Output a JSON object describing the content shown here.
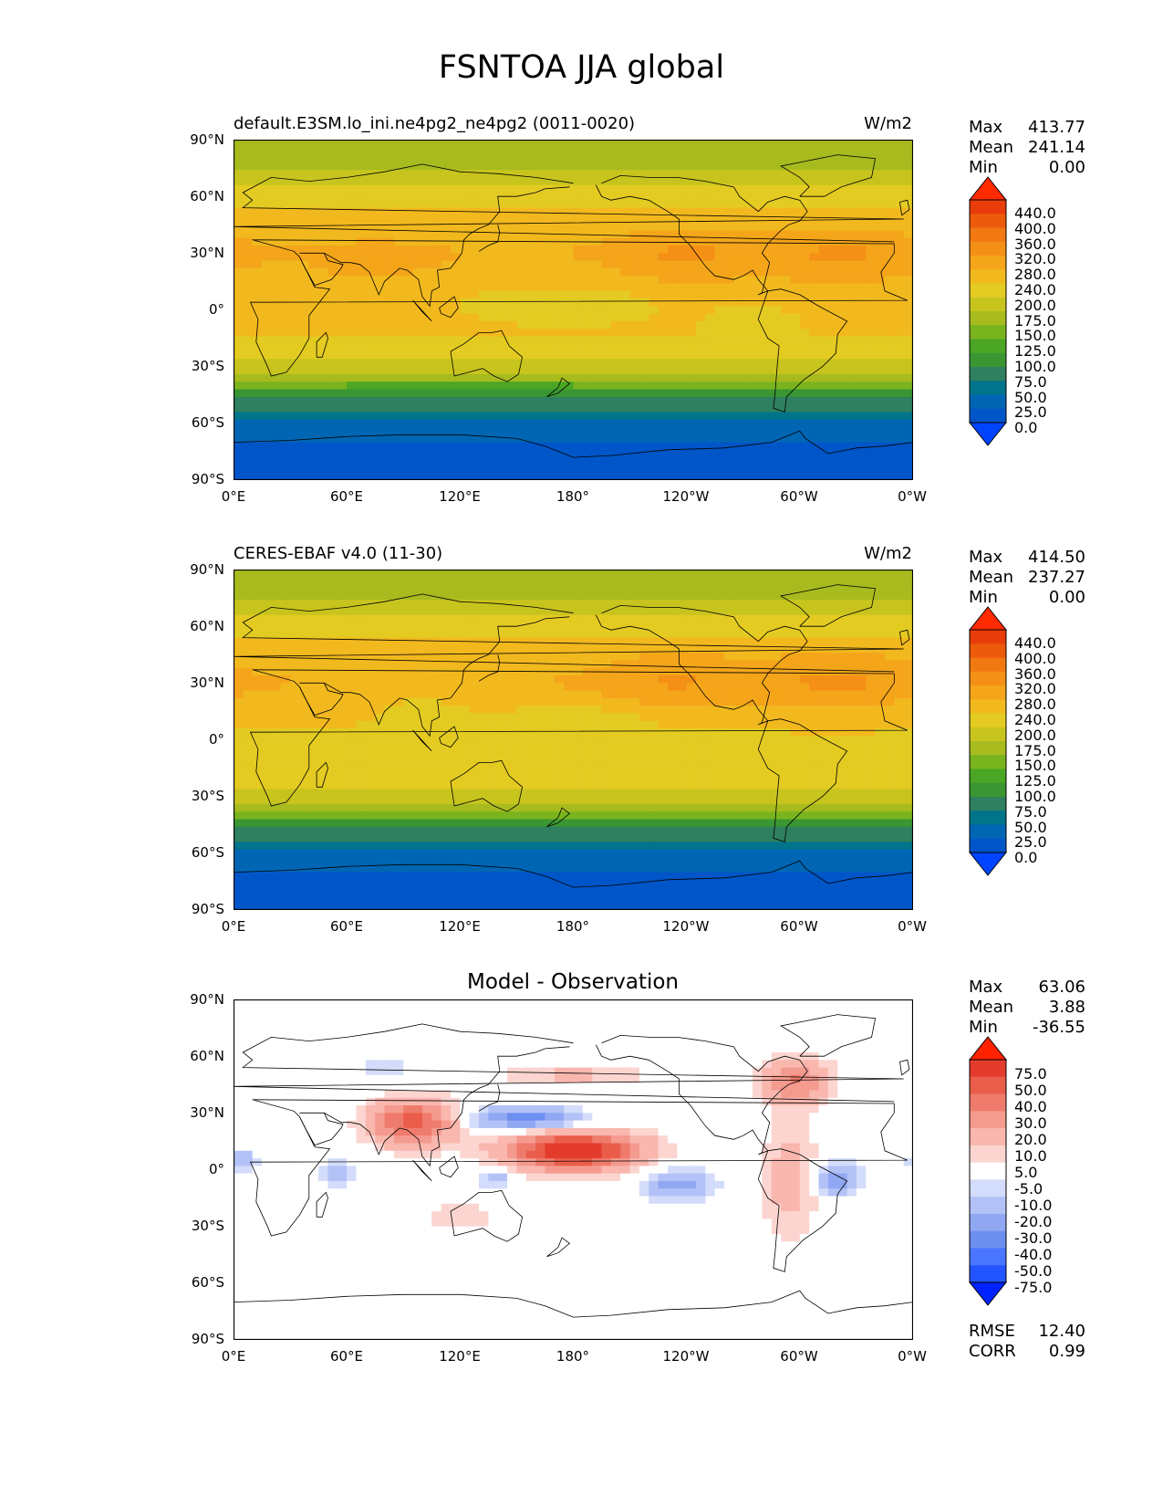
{
  "figure": {
    "title": "FSNTOA JJA global"
  },
  "colors": {
    "sequential": [
      "#0044ff",
      "#0056c8",
      "#0066b4",
      "#00748a",
      "#2e8060",
      "#3a9632",
      "#4aa624",
      "#79b41e",
      "#a8bb1e",
      "#c8c41e",
      "#e3cb22",
      "#f2b91e",
      "#f4a51a",
      "#f49016",
      "#f27812",
      "#ee5a0c",
      "#e83c0a",
      "#ff2a00"
    ],
    "diverging": [
      "#0022ff",
      "#2255ff",
      "#4a76ff",
      "#6d8ff0",
      "#90a8f2",
      "#b3c2f6",
      "#d3dcfa",
      "#ffffff",
      "#fcd5d0",
      "#f9b7ae",
      "#f59a8e",
      "#ef7b6c",
      "#ea5d4a",
      "#e43c2c",
      "#ff2200"
    ]
  },
  "panels": [
    {
      "title": "default.E3SM.lo_ini.ne4pg2_ne4pg2 (0011-0020)",
      "units": "W/m2",
      "stats": [
        {
          "label": "Max",
          "value": "413.77"
        },
        {
          "label": "Mean",
          "value": "241.14"
        },
        {
          "label": "Min",
          "value": "0.00"
        }
      ],
      "colorbar_ticks": [
        "440.0",
        "400.0",
        "360.0",
        "320.0",
        "280.0",
        "240.0",
        "200.0",
        "175.0",
        "150.0",
        "125.0",
        "100.0",
        "75.0",
        "50.0",
        "25.0",
        "0.0"
      ]
    },
    {
      "title": "CERES-EBAF v4.0 (11-30)",
      "units": "W/m2",
      "stats": [
        {
          "label": "Max",
          "value": "414.50"
        },
        {
          "label": "Mean",
          "value": "237.27"
        },
        {
          "label": "Min",
          "value": "0.00"
        }
      ],
      "colorbar_ticks": [
        "440.0",
        "400.0",
        "360.0",
        "320.0",
        "280.0",
        "240.0",
        "200.0",
        "175.0",
        "150.0",
        "125.0",
        "100.0",
        "75.0",
        "50.0",
        "25.0",
        "0.0"
      ]
    },
    {
      "title": "Model - Observation",
      "units": "",
      "stats": [
        {
          "label": "Max",
          "value": "63.06"
        },
        {
          "label": "Mean",
          "value": "3.88"
        },
        {
          "label": "Min",
          "value": "-36.55"
        }
      ],
      "colorbar_ticks": [
        "75.0",
        "50.0",
        "40.0",
        "30.0",
        "20.0",
        "10.0",
        "5.0",
        "-5.0",
        "-10.0",
        "-20.0",
        "-30.0",
        "-40.0",
        "-50.0",
        "-75.0"
      ],
      "extra": [
        {
          "label": "RMSE",
          "value": "12.40"
        },
        {
          "label": "CORR",
          "value": "0.99"
        }
      ]
    }
  ],
  "axes": {
    "y_ticks": [
      "90°N",
      "60°N",
      "30°N",
      "0°",
      "30°S",
      "60°S",
      "90°S"
    ],
    "x_ticks": [
      "0°E",
      "60°E",
      "120°E",
      "180°",
      "120°W",
      "60°W",
      "0°W"
    ]
  },
  "chart_data": [
    {
      "type": "heatmap",
      "title": "default.E3SM.lo_ini.ne4pg2_ne4pg2 (0011-0020)",
      "units": "W/m2",
      "xlim": [
        0,
        360
      ],
      "ylim": [
        -90,
        90
      ],
      "levels": [
        0,
        25,
        50,
        75,
        100,
        125,
        150,
        175,
        200,
        240,
        280,
        320,
        360,
        400,
        440
      ],
      "zonal_mean_profile": {
        "lat": [
          -90,
          -75,
          -60,
          -45,
          -30,
          -15,
          0,
          15,
          30,
          45,
          60,
          75,
          90
        ],
        "value": [
          0,
          12,
          40,
          110,
          230,
          280,
          290,
          300,
          320,
          300,
          260,
          200,
          175
        ]
      },
      "anomalies": [
        {
          "lon": 240,
          "lat": 28,
          "rx": 35,
          "ry": 16,
          "delta": 50
        },
        {
          "lon": 322,
          "lat": 28,
          "rx": 38,
          "ry": 16,
          "delta": 50
        },
        {
          "lon": 75,
          "lat": 25,
          "rx": 30,
          "ry": 10,
          "delta": 30
        },
        {
          "lon": 175,
          "lat": 5,
          "rx": 60,
          "ry": 10,
          "delta": -30
        },
        {
          "lon": 275,
          "lat": -5,
          "rx": 20,
          "ry": 8,
          "delta": -30
        }
      ],
      "stats": {
        "max": 413.77,
        "mean": 241.14,
        "min": 0.0
      }
    },
    {
      "type": "heatmap",
      "title": "CERES-EBAF v4.0 (11-30)",
      "units": "W/m2",
      "xlim": [
        0,
        360
      ],
      "ylim": [
        -90,
        90
      ],
      "levels": [
        0,
        25,
        50,
        75,
        100,
        125,
        150,
        175,
        200,
        240,
        280,
        320,
        360,
        400,
        440
      ],
      "zonal_mean_profile": {
        "lat": [
          -90,
          -75,
          -60,
          -45,
          -30,
          -15,
          0,
          15,
          30,
          45,
          60,
          75,
          90
        ],
        "value": [
          0,
          12,
          40,
          110,
          230,
          270,
          270,
          290,
          320,
          300,
          260,
          200,
          185
        ]
      },
      "anomalies": [
        {
          "lon": 235,
          "lat": 30,
          "rx": 38,
          "ry": 18,
          "delta": 45
        },
        {
          "lon": 320,
          "lat": 30,
          "rx": 40,
          "ry": 18,
          "delta": 50
        },
        {
          "lon": 100,
          "lat": 15,
          "rx": 20,
          "ry": 8,
          "delta": -40
        },
        {
          "lon": 180,
          "lat": 10,
          "rx": 40,
          "ry": 8,
          "delta": -40
        }
      ],
      "stats": {
        "max": 414.5,
        "mean": 237.27,
        "min": 0.0
      }
    },
    {
      "type": "heatmap",
      "title": "Model - Observation",
      "xlim": [
        0,
        360
      ],
      "ylim": [
        -90,
        90
      ],
      "levels": [
        -75,
        -50,
        -40,
        -30,
        -20,
        -10,
        -5,
        5,
        10,
        20,
        30,
        40,
        50,
        75
      ],
      "features": [
        {
          "lon": 180,
          "lat": 10,
          "rx": 35,
          "ry": 10,
          "value": 63
        },
        {
          "lon": 95,
          "lat": 25,
          "rx": 22,
          "ry": 12,
          "value": 45
        },
        {
          "lon": 155,
          "lat": 27,
          "rx": 30,
          "ry": 6,
          "value": -35
        },
        {
          "lon": 298,
          "lat": 47,
          "rx": 18,
          "ry": 12,
          "value": 30
        },
        {
          "lon": 320,
          "lat": -5,
          "rx": 12,
          "ry": 8,
          "value": -30
        },
        {
          "lon": 235,
          "lat": -8,
          "rx": 18,
          "ry": 8,
          "value": -25
        },
        {
          "lon": 55,
          "lat": -2,
          "rx": 10,
          "ry": 7,
          "value": -15
        },
        {
          "lon": 5,
          "lat": 5,
          "rx": 8,
          "ry": 6,
          "value": -15
        },
        {
          "lon": 140,
          "lat": -5,
          "rx": 10,
          "ry": 5,
          "value": -15
        },
        {
          "lon": 295,
          "lat": -5,
          "rx": 15,
          "ry": 30,
          "value": 15
        },
        {
          "lon": 80,
          "lat": 55,
          "rx": 15,
          "ry": 6,
          "value": -10
        },
        {
          "lon": 180,
          "lat": 50,
          "rx": 40,
          "ry": 6,
          "value": 12
        },
        {
          "lon": 120,
          "lat": -25,
          "rx": 20,
          "ry": 8,
          "value": 10
        }
      ],
      "stats": {
        "max": 63.06,
        "mean": 3.88,
        "min": -36.55,
        "rmse": 12.4,
        "corr": 0.99
      }
    }
  ]
}
